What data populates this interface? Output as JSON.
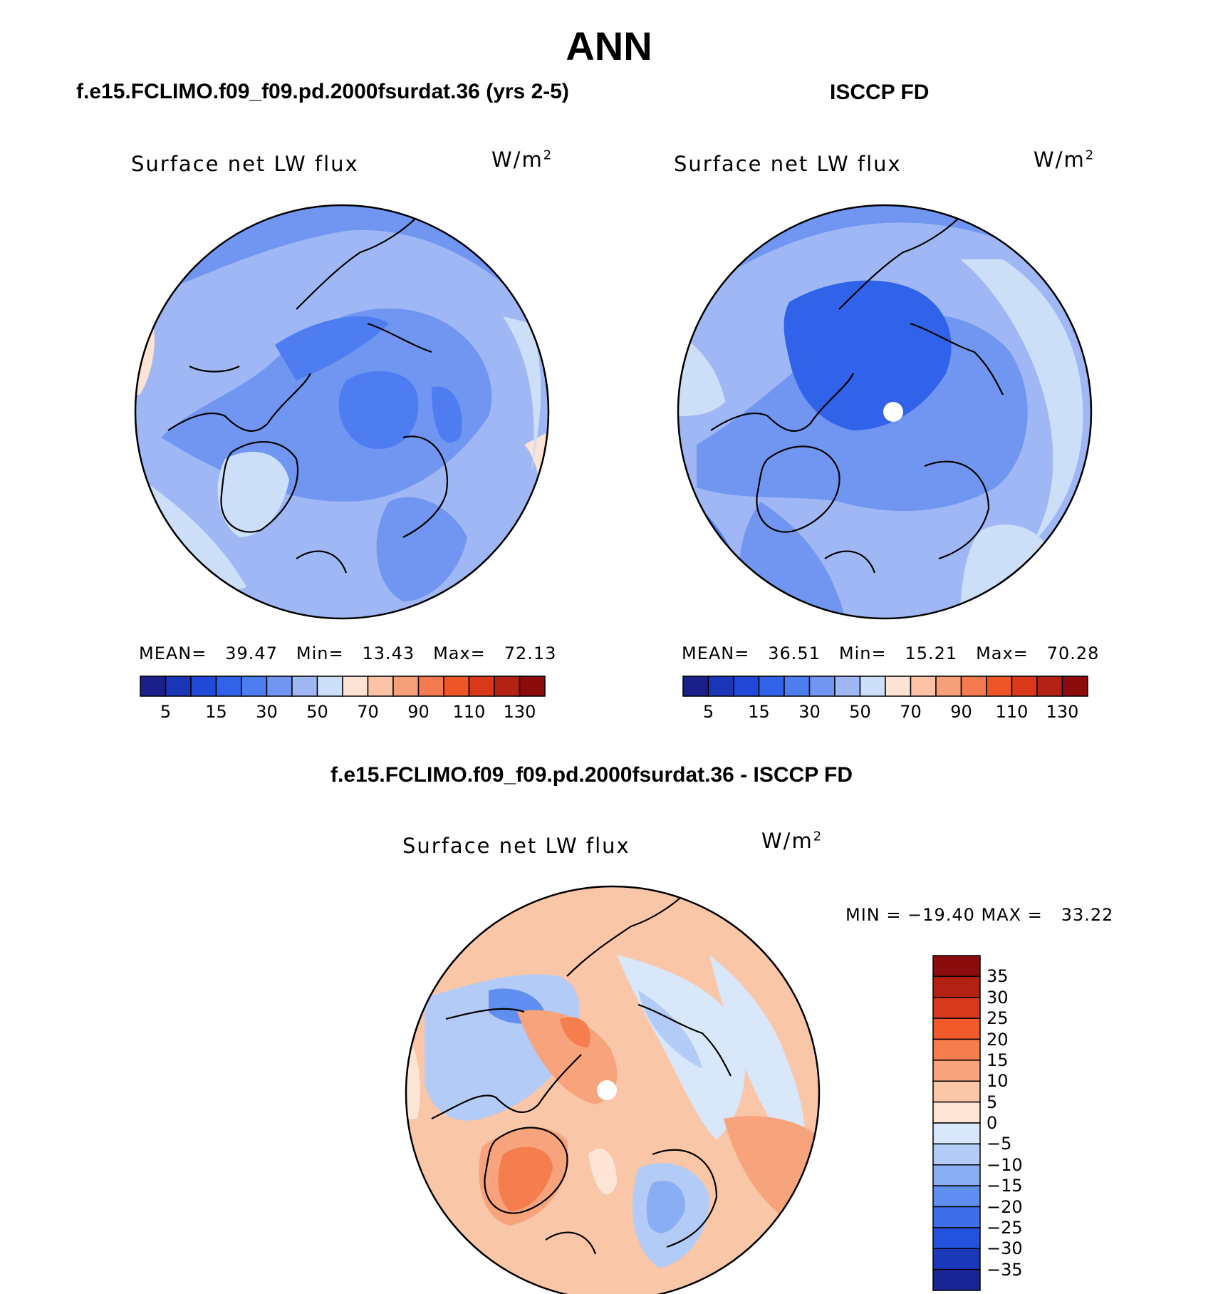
{
  "figure": {
    "title": "ANN"
  },
  "panels": {
    "model": {
      "case_title": "f.e15.FCLIMO.f09_f09.pd.2000fsurdat.36 (yrs 2-5)",
      "plot_title": "Surface net LW flux",
      "units": "W/m",
      "units_sup": "2",
      "stats": {
        "mean_label": "MEAN=",
        "mean": "39.47",
        "min_label": "Min=",
        "min": "13.43",
        "max_label": "Max=",
        "max": "72.13"
      }
    },
    "obs": {
      "case_title": "ISCCP FD",
      "plot_title": "Surface net LW flux",
      "units": "W/m",
      "units_sup": "2",
      "stats": {
        "mean_label": "MEAN=",
        "mean": "36.51",
        "min_label": "Min=",
        "min": "15.21",
        "max_label": "Max=",
        "max": "70.28"
      }
    },
    "diff": {
      "case_title": "f.e15.FCLIMO.f09_f09.pd.2000fsurdat.36 - ISCCP FD",
      "plot_title": "Surface net LW flux",
      "units": "W/m",
      "units_sup": "2",
      "stats_text": "MIN = −19.40 MAX =   33.22"
    }
  },
  "colors": {
    "abs_colorbar": [
      "#1a1f8a",
      "#1a35b5",
      "#2149d8",
      "#3163ea",
      "#4d7df0",
      "#7196f2",
      "#9fb8f5",
      "#cddff8",
      "#fde3d3",
      "#fbc2a6",
      "#f6a07b",
      "#f47a50",
      "#ee5527",
      "#d9391a",
      "#b42214",
      "#8a0c0c"
    ],
    "diff_colorbar": [
      "#8a0c0c",
      "#b32112",
      "#d8391a",
      "#f25a2a",
      "#f57d4e",
      "#f7a37b",
      "#fac6a8",
      "#fde5d6",
      "#d8e7fa",
      "#b2cbf7",
      "#89aef3",
      "#5f8ff0",
      "#3e6fe9",
      "#2352dc",
      "#1a38b8",
      "#182592"
    ]
  },
  "chart_data": [
    {
      "type": "heatmap",
      "title": "Surface net LW flux",
      "panel": "f.e15.FCLIMO.f09_f09.pd.2000fsurdat.36 (yrs 2-5)",
      "units": "W/m2",
      "colorbar_levels": [
        5,
        10,
        15,
        20,
        30,
        40,
        50,
        60,
        70,
        80,
        90,
        100,
        110,
        120,
        130
      ],
      "colorbar_tick_labels": [
        "5",
        "15",
        "30",
        "50",
        "70",
        "90",
        "110",
        "130"
      ],
      "mean": 39.47,
      "min": 13.43,
      "max": 72.13
    },
    {
      "type": "heatmap",
      "title": "Surface net LW flux",
      "panel": "ISCCP FD",
      "units": "W/m2",
      "colorbar_levels": [
        5,
        10,
        15,
        20,
        30,
        40,
        50,
        60,
        70,
        80,
        90,
        100,
        110,
        120,
        130
      ],
      "colorbar_tick_labels": [
        "5",
        "15",
        "30",
        "50",
        "70",
        "90",
        "110",
        "130"
      ],
      "mean": 36.51,
      "min": 15.21,
      "max": 70.28
    },
    {
      "type": "heatmap",
      "title": "Surface net LW flux",
      "panel": "f.e15.FCLIMO.f09_f09.pd.2000fsurdat.36 - ISCCP FD",
      "units": "W/m2",
      "colorbar_levels": [
        35,
        30,
        25,
        20,
        15,
        10,
        5,
        0,
        -5,
        -10,
        -15,
        -20,
        -25,
        -30,
        -35
      ],
      "colorbar_tick_labels": [
        "35",
        "30",
        "25",
        "20",
        "15",
        "10",
        "5",
        "0",
        "−5",
        "−10",
        "−15",
        "−20",
        "−25",
        "−30",
        "−35"
      ],
      "min": -19.4,
      "max": 33.22
    }
  ]
}
